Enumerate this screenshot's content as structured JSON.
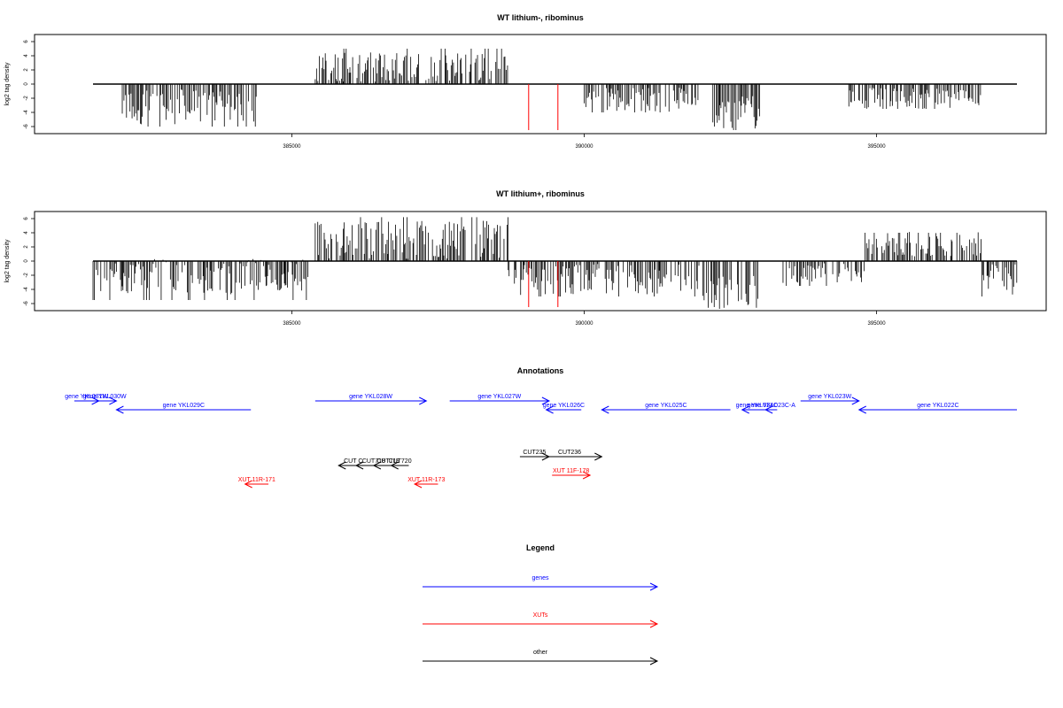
{
  "panel1": {
    "title": "WT lithium-, ribominus",
    "ylabel": "log2 tag density",
    "yticks": [
      "6",
      "4",
      "2",
      "0",
      "-2",
      "-4",
      "-6"
    ],
    "xticks": [
      "385000",
      "390000",
      "395000"
    ]
  },
  "panel2": {
    "title": "WT lithium+, ribominus",
    "ylabel": "log2 tag density",
    "yticks": [
      "6",
      "4",
      "2",
      "0",
      "-2",
      "-4",
      "-6"
    ],
    "xticks": [
      "385000",
      "390000",
      "395000"
    ]
  },
  "annotations": {
    "title": "Annotations",
    "colors": {
      "gene": "#0000ff",
      "xut": "#ff0000",
      "other": "#000000"
    },
    "items": [
      {
        "label": "gene YKL031W",
        "type": "gene",
        "start": 381280,
        "end": 381700,
        "strand": "+",
        "row": 0
      },
      {
        "label": "gene YKL030W",
        "type": "gene",
        "start": 381600,
        "end": 382000,
        "strand": "+",
        "row": 0
      },
      {
        "label": "gene YKL029C",
        "type": "gene",
        "start": 382000,
        "end": 384300,
        "strand": "-",
        "row": 1
      },
      {
        "label": "gene YKL028W",
        "type": "gene",
        "start": 385400,
        "end": 387300,
        "strand": "+",
        "row": 0
      },
      {
        "label": "gene YKL027W",
        "type": "gene",
        "start": 387700,
        "end": 389400,
        "strand": "+",
        "row": 0
      },
      {
        "label": "gene YKL026C",
        "type": "gene",
        "start": 389350,
        "end": 389950,
        "strand": "-",
        "row": 1
      },
      {
        "label": "gene YKL025C",
        "type": "gene",
        "start": 390300,
        "end": 392500,
        "strand": "-",
        "row": 1
      },
      {
        "label": "gene YKL024C",
        "type": "gene",
        "start": 392700,
        "end": 393200,
        "strand": "-",
        "row": 1
      },
      {
        "label": "gene YKL023C-A",
        "type": "gene",
        "start": 393100,
        "end": 393300,
        "strand": "-",
        "row": 1
      },
      {
        "label": "gene YKL023W",
        "type": "gene",
        "start": 393700,
        "end": 394700,
        "strand": "+",
        "row": 0
      },
      {
        "label": "gene YKL022C",
        "type": "gene",
        "start": 394700,
        "end": 397400,
        "strand": "-",
        "row": 1
      },
      {
        "label": "CUT C",
        "type": "other",
        "start": 385800,
        "end": 386300,
        "strand": "-",
        "row": 2
      },
      {
        "label": "CUT718",
        "type": "other",
        "start": 386100,
        "end": 386700,
        "strand": "-",
        "row": 2
      },
      {
        "label": "CUT719",
        "type": "other",
        "start": 386400,
        "end": 386900,
        "strand": "-",
        "row": 2
      },
      {
        "label": "CUT720",
        "type": "other",
        "start": 386700,
        "end": 387000,
        "strand": "-",
        "row": 2
      },
      {
        "label": "CUT235",
        "type": "other",
        "start": 388900,
        "end": 389400,
        "strand": "+",
        "row": 3
      },
      {
        "label": "CUT236",
        "type": "other",
        "start": 389200,
        "end": 390300,
        "strand": "+",
        "row": 3
      },
      {
        "label": "XUT 11R-171",
        "type": "xut",
        "start": 384200,
        "end": 384600,
        "strand": "-",
        "row": 4
      },
      {
        "label": "XUT 11R-173",
        "type": "xut",
        "start": 387100,
        "end": 387500,
        "strand": "-",
        "row": 4
      },
      {
        "label": "XUT 11F-178",
        "type": "xut",
        "start": 389450,
        "end": 390100,
        "strand": "+",
        "row": 5
      }
    ]
  },
  "legend": {
    "title": "Legend",
    "items": [
      {
        "label": "genes",
        "color": "#0000ff"
      },
      {
        "label": "XUTs",
        "color": "#ff0000"
      },
      {
        "label": "other",
        "color": "#000000"
      }
    ]
  },
  "chart_data": [
    {
      "type": "bar",
      "title": "WT lithium-, ribominus",
      "xlabel": "",
      "ylabel": "log2 tag density",
      "xlim": [
        380600,
        397900
      ],
      "ylim": [
        -7,
        7
      ],
      "regions": [
        {
          "start": 382100,
          "end": 384400,
          "mean": -3.2,
          "min": -6,
          "max": -1
        },
        {
          "start": 385400,
          "end": 388700,
          "mean": 2.4,
          "min": 0.8,
          "max": 5
        },
        {
          "start": 390000,
          "end": 392000,
          "mean": -2.2,
          "min": -4,
          "max": -0.5
        },
        {
          "start": 392200,
          "end": 393000,
          "mean": -3.8,
          "min": -6.5,
          "max": -1.5
        },
        {
          "start": 394500,
          "end": 396800,
          "mean": -2.0,
          "min": -3.5,
          "max": -0.5
        }
      ],
      "spikes": [
        {
          "x": 389050,
          "y": -6.5,
          "color": "red"
        },
        {
          "x": 389550,
          "y": -6.5,
          "color": "red"
        }
      ]
    },
    {
      "type": "bar",
      "title": "WT lithium+, ribominus",
      "xlabel": "",
      "ylabel": "log2 tag density",
      "xlim": [
        380600,
        397900
      ],
      "ylim": [
        -7,
        7
      ],
      "regions": [
        {
          "start": 381600,
          "end": 385300,
          "mean": -2.2,
          "min": -5.5,
          "max": -0.5
        },
        {
          "start": 385400,
          "end": 388700,
          "mean": 3.0,
          "min": 0.8,
          "max": 6.2
        },
        {
          "start": 388700,
          "end": 392000,
          "mean": -2.6,
          "min": -5,
          "max": -0.6
        },
        {
          "start": 392000,
          "end": 393000,
          "mean": -4.2,
          "min": -6.6,
          "max": -1.5
        },
        {
          "start": 393400,
          "end": 394800,
          "mean": -1.6,
          "min": -3.5,
          "max": -0.5
        },
        {
          "start": 394800,
          "end": 396800,
          "mean": 2.4,
          "min": 0.5,
          "max": 4
        },
        {
          "start": 396800,
          "end": 397400,
          "mean": -2.5,
          "min": -5,
          "max": -0.5
        }
      ],
      "spikes": [
        {
          "x": 389050,
          "y": -6.5,
          "color": "red"
        },
        {
          "x": 389550,
          "y": -6.5,
          "color": "red"
        }
      ]
    }
  ]
}
